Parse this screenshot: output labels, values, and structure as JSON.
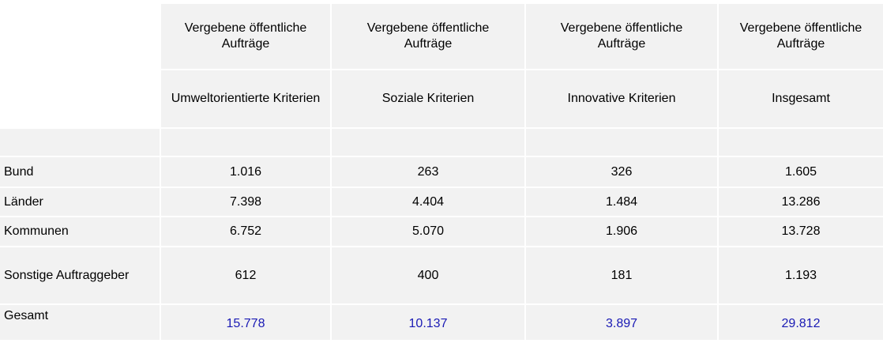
{
  "header": {
    "group_labels": [
      "Vergebene öffentliche Aufträge",
      "Vergebene öffentliche Aufträge",
      "Vergebene öffentliche Aufträge",
      "Vergebene öffentliche Aufträge"
    ],
    "column_labels": [
      "Umweltorientierte Kriterien",
      "Soziale Kriterien",
      "Innovative Kriterien",
      "Insgesamt"
    ]
  },
  "table": {
    "rows": [
      {
        "label": "Bund",
        "values": [
          "1.016",
          "263",
          "326",
          "1.605"
        ]
      },
      {
        "label": "Länder",
        "values": [
          "7.398",
          "4.404",
          "1.484",
          "13.286"
        ]
      },
      {
        "label": "Kommunen",
        "values": [
          "6.752",
          "5.070",
          "1.906",
          "13.728"
        ]
      },
      {
        "label": "Sonstige Auftraggeber",
        "values": [
          "612",
          "400",
          "181",
          "1.193"
        ]
      }
    ],
    "total": {
      "label": "Gesamt",
      "values": [
        "15.778",
        "10.137",
        "3.897",
        "29.812"
      ]
    }
  }
}
